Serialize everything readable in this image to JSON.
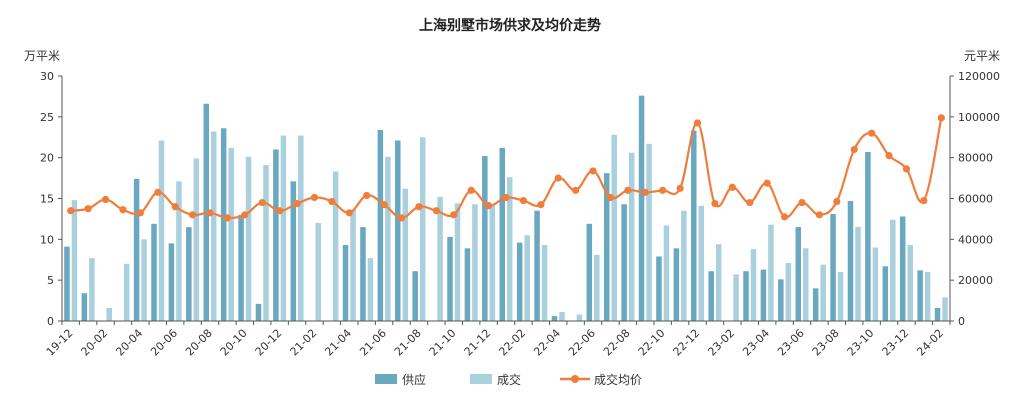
{
  "chart_data": {
    "type": "bar",
    "title": "上海别墅市场供求及均价走势",
    "ylabel_left": "万平米",
    "ylabel_right": "元平米",
    "ylim_left": [
      0,
      30
    ],
    "ylim_right": [
      0,
      120000
    ],
    "yticks_left": [
      0,
      5,
      10,
      15,
      20,
      25,
      30
    ],
    "yticks_right": [
      0,
      20000,
      40000,
      60000,
      80000,
      100000,
      120000
    ],
    "x_tick_labels": [
      "19-12",
      "20-02",
      "20-04",
      "20-06",
      "20-08",
      "20-10",
      "20-12",
      "21-02",
      "21-04",
      "21-06",
      "21-08",
      "21-10",
      "21-12",
      "22-02",
      "22-04",
      "22-06",
      "22-08",
      "22-10",
      "22-12",
      "23-02",
      "23-04",
      "23-06",
      "23-08",
      "23-10",
      "23-12",
      "24-02"
    ],
    "categories": [
      "19-12",
      "20-01",
      "20-02",
      "20-03",
      "20-04",
      "20-05",
      "20-06",
      "20-07",
      "20-08",
      "20-09",
      "20-10",
      "20-11",
      "20-12",
      "21-01",
      "21-02",
      "21-03",
      "21-04",
      "21-05",
      "21-06",
      "21-07",
      "21-08",
      "21-09",
      "21-10",
      "21-11",
      "21-12",
      "22-01",
      "22-02",
      "22-03",
      "22-04",
      "22-05",
      "22-06",
      "22-07",
      "22-08",
      "22-09",
      "22-10",
      "22-11",
      "22-12",
      "23-01",
      "23-02",
      "23-03",
      "23-04",
      "23-05",
      "23-06",
      "23-07",
      "23-08",
      "23-09",
      "23-10",
      "23-11",
      "23-12",
      "24-01",
      "24-02"
    ],
    "series": [
      {
        "name": "供应",
        "kind": "bar",
        "axis": "left",
        "color": "#6aa8c0",
        "values": [
          9.1,
          3.4,
          0,
          0,
          17.4,
          11.9,
          9.5,
          11.5,
          26.6,
          23.6,
          13.0,
          2.1,
          21.0,
          17.1,
          0,
          0,
          9.3,
          11.5,
          23.4,
          22.1,
          6.1,
          0,
          10.3,
          8.9,
          20.2,
          21.2,
          9.6,
          13.5,
          0.6,
          0,
          11.9,
          18.1,
          14.3,
          27.6,
          7.9,
          8.9,
          23.3,
          6.1,
          0,
          6.1,
          6.3,
          5.1,
          11.5,
          4.0,
          13.1,
          14.7,
          20.7,
          6.7,
          12.8,
          6.2,
          1.6
        ]
      },
      {
        "name": "成交",
        "kind": "bar",
        "axis": "left",
        "color": "#a9d0dc",
        "values": [
          14.8,
          7.7,
          1.6,
          7.0,
          10.0,
          22.1,
          17.1,
          19.9,
          23.2,
          21.2,
          20.1,
          19.1,
          22.7,
          22.7,
          12.0,
          18.3,
          13.6,
          7.7,
          20.1,
          16.2,
          22.5,
          15.2,
          14.4,
          14.3,
          14.3,
          17.6,
          10.5,
          9.3,
          1.1,
          0.8,
          8.1,
          22.8,
          20.6,
          21.7,
          11.7,
          13.5,
          14.1,
          9.4,
          5.7,
          8.8,
          11.8,
          7.1,
          8.9,
          6.9,
          6.0,
          11.5,
          9.0,
          12.4,
          9.3,
          6.0,
          2.9
        ]
      },
      {
        "name": "成交均价",
        "kind": "line",
        "axis": "right",
        "color": "#ef7d3c",
        "values": [
          54000,
          55000,
          59500,
          54500,
          53000,
          63000,
          56000,
          52000,
          53000,
          50500,
          52000,
          58000,
          54000,
          57500,
          60500,
          58500,
          53000,
          61500,
          57000,
          50500,
          56000,
          54000,
          52000,
          64000,
          56500,
          60500,
          59000,
          57000,
          70000,
          64000,
          73500,
          60500,
          64000,
          63000,
          64000,
          65000,
          97000,
          57500,
          65500,
          58000,
          67500,
          51000,
          58000,
          52000,
          58500,
          84000,
          92000,
          81000,
          74500,
          59000,
          99500
        ]
      }
    ],
    "legend": {
      "position": "bottom",
      "items": [
        "供应",
        "成交",
        "成交均价"
      ]
    },
    "grid": false
  }
}
